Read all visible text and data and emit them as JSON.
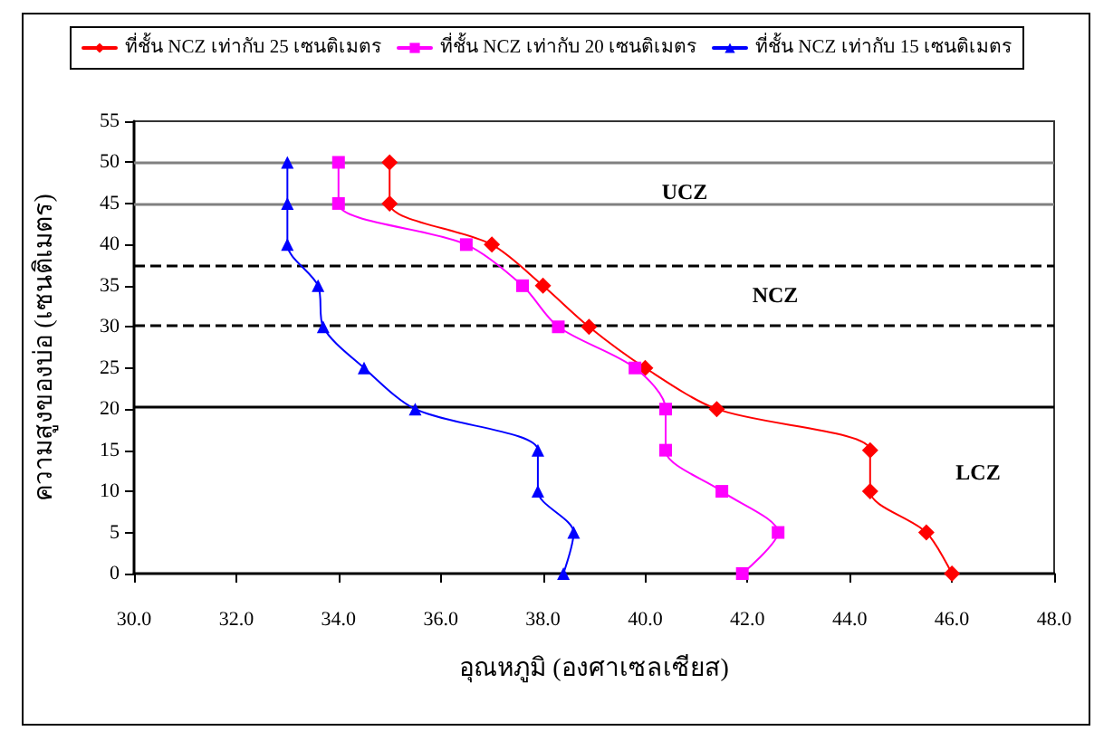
{
  "chart_data": {
    "type": "line",
    "xlabel": "อุณหภูมิ (องศาเซลเซียส)",
    "ylabel": "ความสูงของบ่อ (เซนติเมตร)",
    "xlim": [
      30,
      48
    ],
    "xticks": [
      {
        "value": 30,
        "label": "30.0"
      },
      {
        "value": 32,
        "label": "32.0"
      },
      {
        "value": 34,
        "label": "34.0"
      },
      {
        "value": 36,
        "label": "36.0"
      },
      {
        "value": 38,
        "label": "38.0"
      },
      {
        "value": 40,
        "label": "40.0"
      },
      {
        "value": 42,
        "label": "42.0"
      },
      {
        "value": 44,
        "label": "44.0"
      },
      {
        "value": 46,
        "label": "46.0"
      },
      {
        "value": 48,
        "label": "48.0"
      }
    ],
    "ylim": [
      0,
      55
    ],
    "yticks": [
      0,
      5,
      10,
      15,
      20,
      25,
      30,
      35,
      40,
      45,
      50,
      55
    ],
    "grid": false,
    "legend": "top",
    "series": [
      {
        "name": "ที่ชั้น NCZ เท่ากับ 25 เซนติเมตร",
        "color": "#ff0000",
        "marker": "diamond",
        "x": [
          46.0,
          45.5,
          44.4,
          44.4,
          41.4,
          40.0,
          38.9,
          38.0,
          37.0,
          35.0,
          35.0
        ],
        "values": [
          0,
          5,
          10,
          15,
          20,
          25,
          30,
          35,
          40,
          45,
          50
        ]
      },
      {
        "name": "ที่ชั้น NCZ เท่ากับ 20 เซนติเมตร",
        "color": "#ff00ff",
        "marker": "square",
        "x": [
          41.9,
          42.6,
          41.5,
          40.4,
          40.4,
          39.8,
          38.3,
          37.6,
          36.5,
          34.0,
          34.0
        ],
        "values": [
          0,
          5,
          10,
          15,
          20,
          25,
          30,
          35,
          40,
          45,
          50
        ]
      },
      {
        "name": "ที่ชั้น NCZ เท่ากับ 15 เซนติเมตร",
        "color": "#0000ff",
        "marker": "triangle",
        "x": [
          38.4,
          38.6,
          37.9,
          37.9,
          35.5,
          34.5,
          33.7,
          33.6,
          33.0,
          33.0,
          33.0
        ],
        "values": [
          0,
          5,
          10,
          15,
          20,
          25,
          30,
          35,
          40,
          45,
          50
        ]
      }
    ],
    "ref_lines": [
      {
        "axis": "y",
        "value": 50,
        "color": "#808080",
        "line_style": "solid"
      },
      {
        "axis": "y",
        "value": 45,
        "color": "#808080",
        "line_style": "solid"
      },
      {
        "axis": "y",
        "value": 37.5,
        "color": "#000000",
        "line_style": "dashed"
      },
      {
        "axis": "y",
        "value": 30.3,
        "color": "#000000",
        "line_style": "dashed"
      },
      {
        "axis": "y",
        "value": 20.3,
        "color": "#000000",
        "line_style": "solid"
      }
    ],
    "annotations": [
      "UCZ",
      "NCZ",
      "LCZ"
    ]
  }
}
